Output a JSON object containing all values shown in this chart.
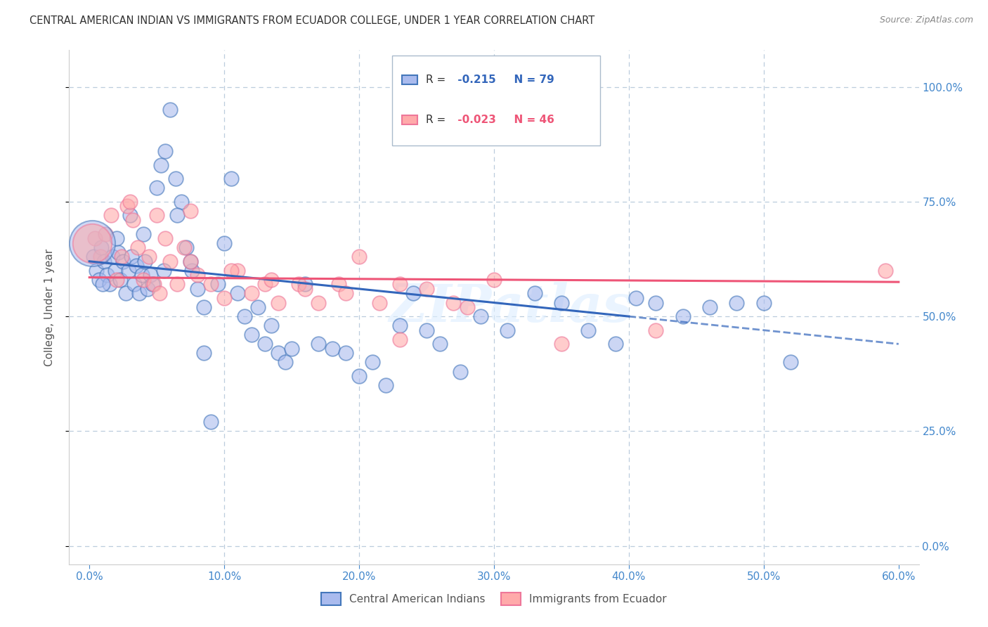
{
  "title": "CENTRAL AMERICAN INDIAN VS IMMIGRANTS FROM ECUADOR COLLEGE, UNDER 1 YEAR CORRELATION CHART",
  "source": "Source: ZipAtlas.com",
  "ylabel_label": "College, Under 1 year",
  "xlim": [
    0.0,
    60.0
  ],
  "ylim": [
    0.0,
    100.0
  ],
  "x_ticks": [
    0,
    10,
    20,
    30,
    40,
    50,
    60
  ],
  "y_ticks": [
    0,
    25,
    50,
    75,
    100
  ],
  "legend1_r": "-0.215",
  "legend1_n": "79",
  "legend2_r": "-0.023",
  "legend2_n": "46",
  "blue_face": "#AABBEE",
  "blue_edge": "#4477BB",
  "pink_face": "#FFAAAA",
  "pink_edge": "#EE7799",
  "blue_line": "#3366BB",
  "pink_line": "#EE5577",
  "tick_color": "#4488CC",
  "grid_color": "#BBCCDD",
  "watermark": "ZIPatlas",
  "blue_x": [
    0.3,
    0.5,
    0.7,
    0.9,
    1.1,
    1.3,
    1.5,
    1.7,
    1.9,
    2.1,
    2.3,
    2.5,
    2.7,
    2.9,
    3.1,
    3.3,
    3.5,
    3.7,
    3.9,
    4.1,
    4.3,
    4.5,
    4.7,
    5.0,
    5.3,
    5.6,
    6.0,
    6.4,
    6.8,
    7.2,
    7.6,
    8.0,
    8.5,
    9.0,
    9.5,
    10.0,
    10.5,
    11.0,
    11.5,
    12.0,
    12.5,
    13.0,
    13.5,
    14.0,
    14.5,
    15.0,
    16.0,
    17.0,
    18.0,
    19.0,
    20.0,
    21.0,
    22.0,
    23.0,
    24.0,
    25.0,
    26.0,
    27.5,
    29.0,
    31.0,
    33.0,
    35.0,
    37.0,
    39.0,
    40.5,
    42.0,
    44.0,
    46.0,
    48.0,
    50.0,
    52.0,
    6.5,
    7.5,
    4.0,
    3.0,
    2.0,
    8.5,
    1.0,
    5.5
  ],
  "blue_y": [
    63.0,
    60.0,
    58.0,
    65.0,
    62.0,
    59.0,
    57.0,
    63.0,
    60.0,
    64.0,
    58.0,
    62.0,
    55.0,
    60.0,
    63.0,
    57.0,
    61.0,
    55.0,
    59.0,
    62.0,
    56.0,
    59.0,
    57.0,
    78.0,
    83.0,
    86.0,
    95.0,
    80.0,
    75.0,
    65.0,
    60.0,
    56.0,
    42.0,
    27.0,
    57.0,
    66.0,
    80.0,
    55.0,
    50.0,
    46.0,
    52.0,
    44.0,
    48.0,
    42.0,
    40.0,
    43.0,
    57.0,
    44.0,
    43.0,
    42.0,
    37.0,
    40.0,
    35.0,
    48.0,
    55.0,
    47.0,
    44.0,
    38.0,
    50.0,
    47.0,
    55.0,
    53.0,
    47.0,
    44.0,
    54.0,
    53.0,
    50.0,
    52.0,
    53.0,
    53.0,
    40.0,
    72.0,
    62.0,
    68.0,
    72.0,
    67.0,
    52.0,
    57.0,
    60.0
  ],
  "pink_x": [
    0.4,
    0.8,
    1.2,
    1.6,
    2.0,
    2.4,
    2.8,
    3.2,
    3.6,
    4.0,
    4.4,
    4.8,
    5.2,
    5.6,
    6.0,
    6.5,
    7.0,
    7.5,
    8.0,
    9.0,
    10.0,
    11.0,
    12.0,
    13.0,
    14.0,
    15.5,
    17.0,
    18.5,
    20.0,
    21.5,
    23.0,
    25.0,
    27.0,
    30.0,
    3.0,
    5.0,
    7.5,
    10.5,
    13.5,
    16.0,
    19.0,
    23.0,
    28.0,
    35.0,
    42.0,
    59.0
  ],
  "pink_y": [
    67.0,
    63.0,
    68.0,
    72.0,
    58.0,
    63.0,
    74.0,
    71.0,
    65.0,
    58.0,
    63.0,
    57.0,
    55.0,
    67.0,
    62.0,
    57.0,
    65.0,
    62.0,
    59.0,
    57.0,
    54.0,
    60.0,
    55.0,
    57.0,
    53.0,
    57.0,
    53.0,
    57.0,
    63.0,
    53.0,
    57.0,
    56.0,
    53.0,
    58.0,
    75.0,
    72.0,
    73.0,
    60.0,
    58.0,
    56.0,
    55.0,
    45.0,
    52.0,
    44.0,
    47.0,
    60.0
  ],
  "blue_trend_x0": 0.0,
  "blue_trend_y0": 62.0,
  "blue_trend_x1": 60.0,
  "blue_trend_y1": 44.0,
  "blue_solid_end": 40.0,
  "pink_trend_x0": 0.0,
  "pink_trend_y0": 58.5,
  "pink_trend_x1": 60.0,
  "pink_trend_y1": 57.5,
  "large_blue_x": 0.2,
  "large_blue_y": 66.0,
  "large_pink_x": 0.2,
  "large_pink_y": 66.0
}
